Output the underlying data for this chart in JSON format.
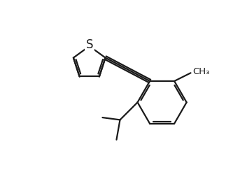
{
  "background_color": "#ffffff",
  "line_color": "#1a1a1a",
  "line_width": 1.6,
  "dbo": 0.08,
  "S_label": "S",
  "S_fontsize": 12,
  "figsize": [
    3.43,
    2.66
  ],
  "dpi": 100,
  "xlim": [
    0,
    10
  ],
  "ylim": [
    0,
    7.8
  ]
}
